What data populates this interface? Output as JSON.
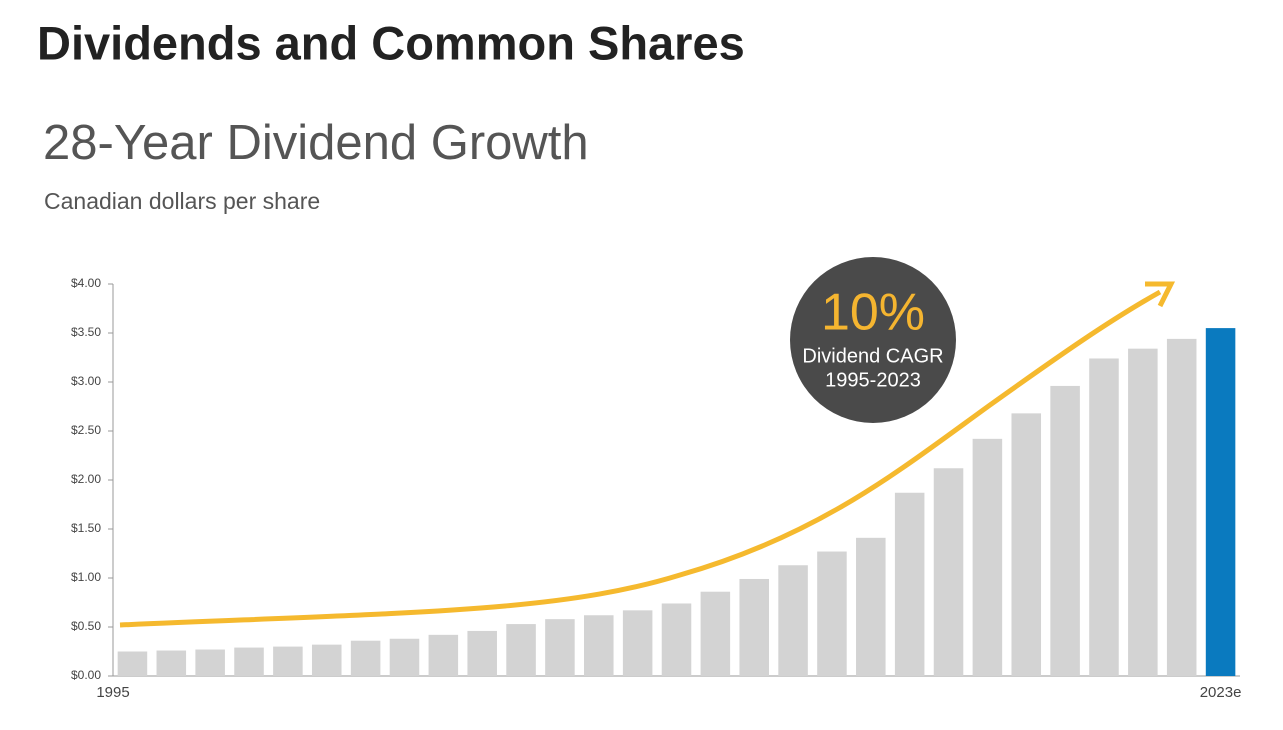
{
  "chart_data": {
    "type": "bar",
    "title": "Dividends and Common Shares",
    "subtitle": "28-Year Dividend Growth",
    "y_label": "Canadian dollars per share",
    "annotations": [
      "10%",
      "Dividend CAGR",
      "1995-2023"
    ],
    "categories": [
      "1995",
      null,
      null,
      null,
      null,
      null,
      null,
      null,
      null,
      null,
      null,
      null,
      null,
      null,
      null,
      null,
      null,
      null,
      null,
      null,
      null,
      null,
      null,
      null,
      null,
      null,
      null,
      null,
      "2023e"
    ],
    "values": [
      0.25,
      0.26,
      0.27,
      0.29,
      0.3,
      0.32,
      0.36,
      0.38,
      0.42,
      0.46,
      0.53,
      0.58,
      0.62,
      0.67,
      0.74,
      0.86,
      0.99,
      1.13,
      1.27,
      1.41,
      1.87,
      2.12,
      2.42,
      2.68,
      2.96,
      3.24,
      3.34,
      3.44,
      3.55
    ],
    "colors": [
      "#d3d3d3",
      "#d3d3d3",
      "#d3d3d3",
      "#d3d3d3",
      "#d3d3d3",
      "#d3d3d3",
      "#d3d3d3",
      "#d3d3d3",
      "#d3d3d3",
      "#d3d3d3",
      "#d3d3d3",
      "#d3d3d3",
      "#d3d3d3",
      "#d3d3d3",
      "#d3d3d3",
      "#d3d3d3",
      "#d3d3d3",
      "#d3d3d3",
      "#d3d3d3",
      "#d3d3d3",
      "#d3d3d3",
      "#d3d3d3",
      "#d3d3d3",
      "#d3d3d3",
      "#d3d3d3",
      "#d3d3d3",
      "#d3d3d3",
      "#d3d3d3",
      "#0a7abf"
    ],
    "ylim": [
      0,
      4
    ],
    "yticks": [
      {
        "value": 0,
        "label": "$0.00"
      },
      {
        "value": 0.5,
        "label": "$0.50"
      },
      {
        "value": 1,
        "label": "$1.00"
      },
      {
        "value": 1.5,
        "label": "$1.50"
      },
      {
        "value": 2,
        "label": "$2.00"
      },
      {
        "value": 2.5,
        "label": "$2.50"
      },
      {
        "value": 3,
        "label": "$3.00"
      },
      {
        "value": 3.5,
        "label": "$3.50"
      },
      {
        "value": 4,
        "label": "$4.00"
      }
    ],
    "grid": false
  }
}
